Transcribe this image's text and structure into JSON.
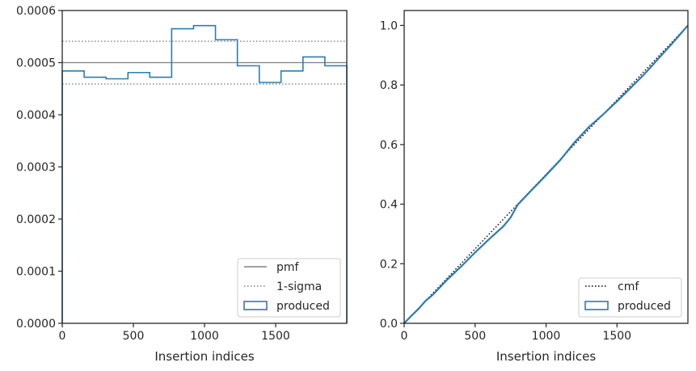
{
  "chart_data": [
    {
      "type": "line",
      "xlabel": "Insertion indices",
      "ylabel": "",
      "xlim": [
        0,
        2000
      ],
      "ylim": [
        0,
        0.0006
      ],
      "x_ticks": [
        0,
        500,
        1000,
        1500
      ],
      "x_tick_labels": [
        "0",
        "500",
        "1000",
        "1500"
      ],
      "y_ticks": [
        0,
        0.0001,
        0.0002,
        0.0003,
        0.0004,
        0.0005,
        0.0006
      ],
      "y_tick_labels": [
        "0.0000",
        "0.0001",
        "0.0002",
        "0.0003",
        "0.0004",
        "0.0005",
        "0.0006"
      ],
      "grid": false,
      "legend_position": "bottom-right",
      "series": [
        {
          "name": "pmf",
          "kind": "hline",
          "value": 0.0005,
          "color": "#808080",
          "style": "solid"
        },
        {
          "name": "1-sigma",
          "kind": "hlines",
          "values": [
            0.000541,
            0.000459
          ],
          "color": "#808080",
          "style": "dotted"
        },
        {
          "name": "produced",
          "kind": "step-histogram",
          "color": "#2e7cab",
          "bin_edges": [
            0,
            154,
            308,
            462,
            615,
            769,
            923,
            1077,
            1231,
            1385,
            1538,
            1692,
            1846,
            2000
          ],
          "values": [
            0.000484,
            0.000472,
            0.000469,
            0.000481,
            0.000472,
            0.000565,
            0.000571,
            0.000544,
            0.000494,
            0.000462,
            0.000484,
            0.000511,
            0.000494
          ]
        }
      ]
    },
    {
      "type": "line",
      "xlabel": "Insertion indices",
      "ylabel": "",
      "xlim": [
        0,
        2000
      ],
      "ylim": [
        0,
        1.05
      ],
      "x_ticks": [
        0,
        500,
        1000,
        1500
      ],
      "x_tick_labels": [
        "0",
        "500",
        "1000",
        "1500"
      ],
      "y_ticks": [
        0,
        0.2,
        0.4,
        0.6,
        0.8,
        1.0
      ],
      "y_tick_labels": [
        "0.0",
        "0.2",
        "0.4",
        "0.6",
        "0.8",
        "1.0"
      ],
      "grid": false,
      "legend_position": "bottom-right",
      "series": [
        {
          "name": "cmf",
          "kind": "line",
          "color": "#000000",
          "style": "dotted",
          "x": [
            0,
            2000
          ],
          "y": [
            0,
            1.0
          ]
        },
        {
          "name": "produced",
          "kind": "cumulative-step",
          "color": "#2e7cab",
          "x": [
            0,
            50,
            100,
            150,
            200,
            300,
            400,
            500,
            600,
            700,
            750,
            800,
            900,
            1000,
            1100,
            1200,
            1300,
            1400,
            1500,
            1600,
            1700,
            1800,
            1900,
            2000
          ],
          "y": [
            0,
            0.025,
            0.048,
            0.075,
            0.095,
            0.145,
            0.19,
            0.238,
            0.283,
            0.326,
            0.355,
            0.398,
            0.448,
            0.497,
            0.548,
            0.607,
            0.658,
            0.7,
            0.745,
            0.792,
            0.84,
            0.893,
            0.945,
            1.0
          ]
        }
      ]
    }
  ]
}
